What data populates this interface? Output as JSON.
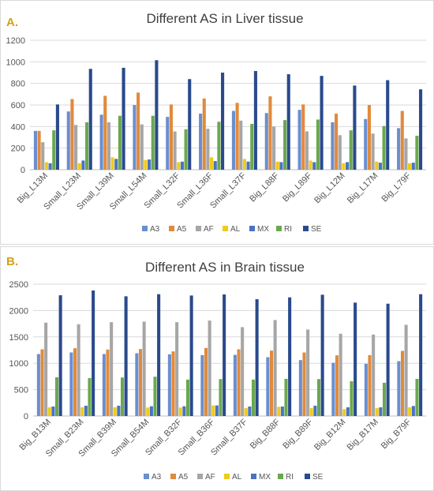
{
  "colors": {
    "A3": "#6a8fd0",
    "A5": "#e18a3c",
    "AF": "#a6a6a6",
    "AL": "#f0cb1a",
    "MX": "#4a73c2",
    "RI": "#6aa84f",
    "SE": "#2a4a8c",
    "panel_letter": "#d4a017",
    "gridline": "#d9d9d9",
    "axis_text": "#555555"
  },
  "chart_data": [
    {
      "type": "bar",
      "panel_letter": "A.",
      "title": "Different AS in Liver tissue",
      "xlabel": "",
      "ylabel": "",
      "ylim": [
        0,
        1200
      ],
      "yticks": [
        0,
        200,
        400,
        600,
        800,
        1000,
        1200
      ],
      "grid": true,
      "legend_position": "bottom",
      "categories": [
        "Big_L13M",
        "Small_L23M",
        "Small_L39M",
        "Small_L54M",
        "Small_L32F",
        "Small_L36F",
        "Small_L37F",
        "Big_L88F",
        "Big_L89F",
        "Big_L12M",
        "Big_L17M",
        "Big_L79F"
      ],
      "series": [
        {
          "name": "A3",
          "values": [
            360,
            540,
            510,
            600,
            490,
            520,
            545,
            525,
            555,
            440,
            470,
            385
          ]
        },
        {
          "name": "A5",
          "values": [
            360,
            655,
            685,
            715,
            605,
            660,
            620,
            680,
            605,
            520,
            600,
            545
          ]
        },
        {
          "name": "AF",
          "values": [
            255,
            415,
            440,
            420,
            355,
            380,
            455,
            400,
            355,
            320,
            335,
            290
          ]
        },
        {
          "name": "AL",
          "values": [
            70,
            60,
            115,
            90,
            70,
            115,
            100,
            75,
            85,
            60,
            75,
            60
          ]
        },
        {
          "name": "MX",
          "values": [
            60,
            85,
            100,
            95,
            75,
            80,
            75,
            70,
            70,
            70,
            65,
            65
          ]
        },
        {
          "name": "RI",
          "values": [
            365,
            440,
            500,
            500,
            375,
            445,
            425,
            460,
            465,
            365,
            405,
            315
          ]
        },
        {
          "name": "SE",
          "values": [
            605,
            935,
            945,
            1015,
            840,
            900,
            915,
            885,
            870,
            780,
            830,
            745
          ]
        }
      ]
    },
    {
      "type": "bar",
      "panel_letter": "B.",
      "title": "Different AS in Brain tissue",
      "xlabel": "",
      "ylabel": "",
      "ylim": [
        0,
        2500
      ],
      "yticks": [
        0,
        500,
        1000,
        1500,
        2000,
        2500
      ],
      "grid": true,
      "legend_position": "bottom",
      "categories": [
        "Big_B13M",
        "Small_B23M",
        "Small_B39M",
        "Small_B54M",
        "Small_B32F",
        "Small_B36F",
        "Small_B37F",
        "Big_B88F",
        "Big_B89F",
        "Big_B12M",
        "Big_B17M",
        "Big_B79F"
      ],
      "series": [
        {
          "name": "A3",
          "values": [
            1175,
            1205,
            1175,
            1190,
            1170,
            1155,
            1160,
            1115,
            1060,
            1010,
            990,
            1040
          ]
        },
        {
          "name": "A5",
          "values": [
            1265,
            1285,
            1260,
            1270,
            1225,
            1290,
            1265,
            1240,
            1205,
            1150,
            1155,
            1235
          ]
        },
        {
          "name": "AF",
          "values": [
            1770,
            1740,
            1780,
            1790,
            1780,
            1810,
            1685,
            1820,
            1640,
            1560,
            1545,
            1730
          ]
        },
        {
          "name": "AL",
          "values": [
            165,
            165,
            165,
            160,
            160,
            200,
            150,
            175,
            150,
            130,
            150,
            165
          ]
        },
        {
          "name": "MX",
          "values": [
            180,
            195,
            195,
            185,
            185,
            200,
            180,
            180,
            195,
            165,
            165,
            190
          ]
        },
        {
          "name": "RI",
          "values": [
            735,
            720,
            730,
            745,
            690,
            700,
            690,
            705,
            700,
            660,
            630,
            705
          ]
        },
        {
          "name": "SE",
          "values": [
            2290,
            2380,
            2270,
            2310,
            2285,
            2305,
            2215,
            2250,
            2300,
            2150,
            2130,
            2310
          ]
        }
      ]
    }
  ]
}
